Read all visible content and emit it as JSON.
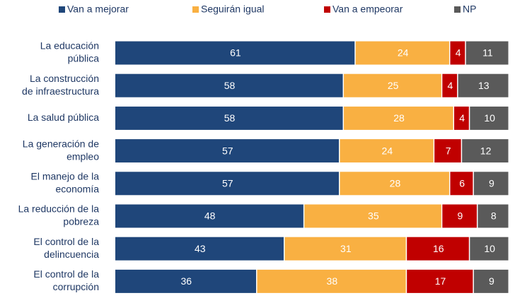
{
  "chart_data": {
    "type": "stacked-bar-horizontal",
    "categories": [
      [
        "La educación",
        "pública"
      ],
      [
        "La construcción",
        "de infraestructura"
      ],
      [
        "La salud pública"
      ],
      [
        "La generación de",
        "empleo"
      ],
      [
        "El manejo de la",
        "economía"
      ],
      [
        "La reducción de la",
        "pobreza"
      ],
      [
        "El control de la",
        "delincuencia"
      ],
      [
        "El control de la",
        "corrupción"
      ]
    ],
    "series": [
      {
        "name": "Van a mejorar",
        "color": "#1f467a",
        "values": [
          61,
          58,
          58,
          57,
          57,
          48,
          43,
          36
        ]
      },
      {
        "name": "Seguirán igual",
        "color": "#f9b042",
        "values": [
          24,
          25,
          28,
          24,
          28,
          35,
          31,
          38
        ]
      },
      {
        "name": "Van a empeorar",
        "color": "#c00000",
        "values": [
          4,
          4,
          4,
          7,
          6,
          9,
          16,
          17
        ]
      },
      {
        "name": "NP",
        "color": "#5a5a5a",
        "values": [
          11,
          13,
          10,
          12,
          9,
          8,
          10,
          9
        ]
      }
    ],
    "xlim": [
      0,
      100
    ],
    "legend": "top"
  }
}
